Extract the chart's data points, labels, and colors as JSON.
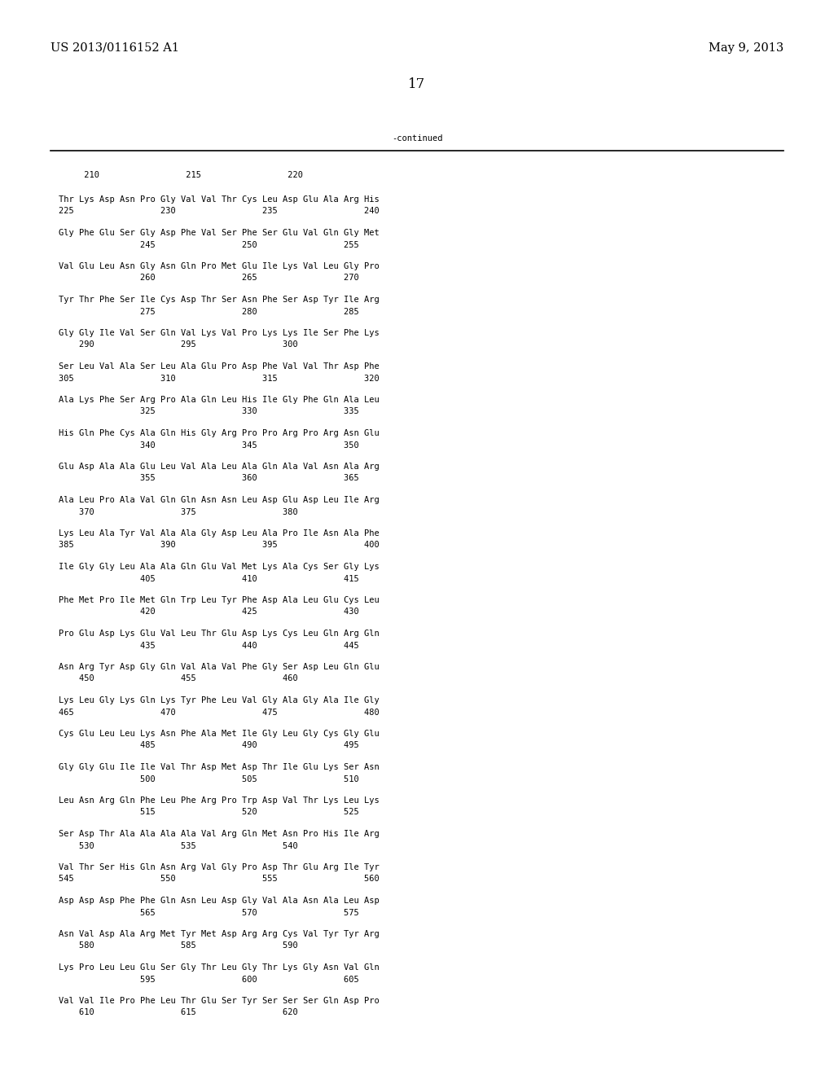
{
  "header_left": "US 2013/0116152 A1",
  "header_right": "May 9, 2013",
  "page_number": "17",
  "continued_label": "-continued",
  "ruler": "     210                 215                 220",
  "blocks": [
    [
      "Thr Lys Asp Asn Pro Gly Val Val Thr Cys Leu Asp Glu Ala Arg His",
      "225                 230                 235                 240"
    ],
    [
      "Gly Phe Glu Ser Gly Asp Phe Val Ser Phe Ser Glu Val Gln Gly Met",
      "                245                 250                 255"
    ],
    [
      "Val Glu Leu Asn Gly Asn Gln Pro Met Glu Ile Lys Val Leu Gly Pro",
      "                260                 265                 270"
    ],
    [
      "Tyr Thr Phe Ser Ile Cys Asp Thr Ser Asn Phe Ser Asp Tyr Ile Arg",
      "                275                 280                 285"
    ],
    [
      "Gly Gly Ile Val Ser Gln Val Lys Val Pro Lys Lys Ile Ser Phe Lys",
      "    290                 295                 300"
    ],
    [
      "Ser Leu Val Ala Ser Leu Ala Glu Pro Asp Phe Val Val Thr Asp Phe",
      "305                 310                 315                 320"
    ],
    [
      "Ala Lys Phe Ser Arg Pro Ala Gln Leu His Ile Gly Phe Gln Ala Leu",
      "                325                 330                 335"
    ],
    [
      "His Gln Phe Cys Ala Gln His Gly Arg Pro Pro Arg Pro Arg Asn Glu",
      "                340                 345                 350"
    ],
    [
      "Glu Asp Ala Ala Glu Leu Val Ala Leu Ala Gln Ala Val Asn Ala Arg",
      "                355                 360                 365"
    ],
    [
      "Ala Leu Pro Ala Val Gln Gln Asn Asn Leu Asp Glu Asp Leu Ile Arg",
      "    370                 375                 380"
    ],
    [
      "Lys Leu Ala Tyr Val Ala Ala Gly Asp Leu Ala Pro Ile Asn Ala Phe",
      "385                 390                 395                 400"
    ],
    [
      "Ile Gly Gly Leu Ala Ala Gln Glu Val Met Lys Ala Cys Ser Gly Lys",
      "                405                 410                 415"
    ],
    [
      "Phe Met Pro Ile Met Gln Trp Leu Tyr Phe Asp Ala Leu Glu Cys Leu",
      "                420                 425                 430"
    ],
    [
      "Pro Glu Asp Lys Glu Val Leu Thr Glu Asp Lys Cys Leu Gln Arg Gln",
      "                435                 440                 445"
    ],
    [
      "Asn Arg Tyr Asp Gly Gln Val Ala Val Phe Gly Ser Asp Leu Gln Glu",
      "    450                 455                 460"
    ],
    [
      "Lys Leu Gly Lys Gln Lys Tyr Phe Leu Val Gly Ala Gly Ala Ile Gly",
      "465                 470                 475                 480"
    ],
    [
      "Cys Glu Leu Leu Lys Asn Phe Ala Met Ile Gly Leu Gly Cys Gly Glu",
      "                485                 490                 495"
    ],
    [
      "Gly Gly Glu Ile Ile Val Thr Asp Met Asp Thr Ile Glu Lys Ser Asn",
      "                500                 505                 510"
    ],
    [
      "Leu Asn Arg Gln Phe Leu Phe Arg Pro Trp Asp Val Thr Lys Leu Lys",
      "                515                 520                 525"
    ],
    [
      "Ser Asp Thr Ala Ala Ala Ala Val Arg Gln Met Asn Pro His Ile Arg",
      "    530                 535                 540"
    ],
    [
      "Val Thr Ser His Gln Asn Arg Val Gly Pro Asp Thr Glu Arg Ile Tyr",
      "545                 550                 555                 560"
    ],
    [
      "Asp Asp Asp Phe Phe Gln Asn Leu Asp Gly Val Ala Asn Ala Leu Asp",
      "                565                 570                 575"
    ],
    [
      "Asn Val Asp Ala Arg Met Tyr Met Asp Arg Arg Cys Val Tyr Tyr Arg",
      "    580                 585                 590"
    ],
    [
      "Lys Pro Leu Leu Glu Ser Gly Thr Leu Gly Thr Lys Gly Asn Val Gln",
      "                595                 600                 605"
    ],
    [
      "Val Val Ile Pro Phe Leu Thr Glu Ser Tyr Ser Ser Ser Gln Asp Pro",
      "    610                 615                 620"
    ]
  ]
}
